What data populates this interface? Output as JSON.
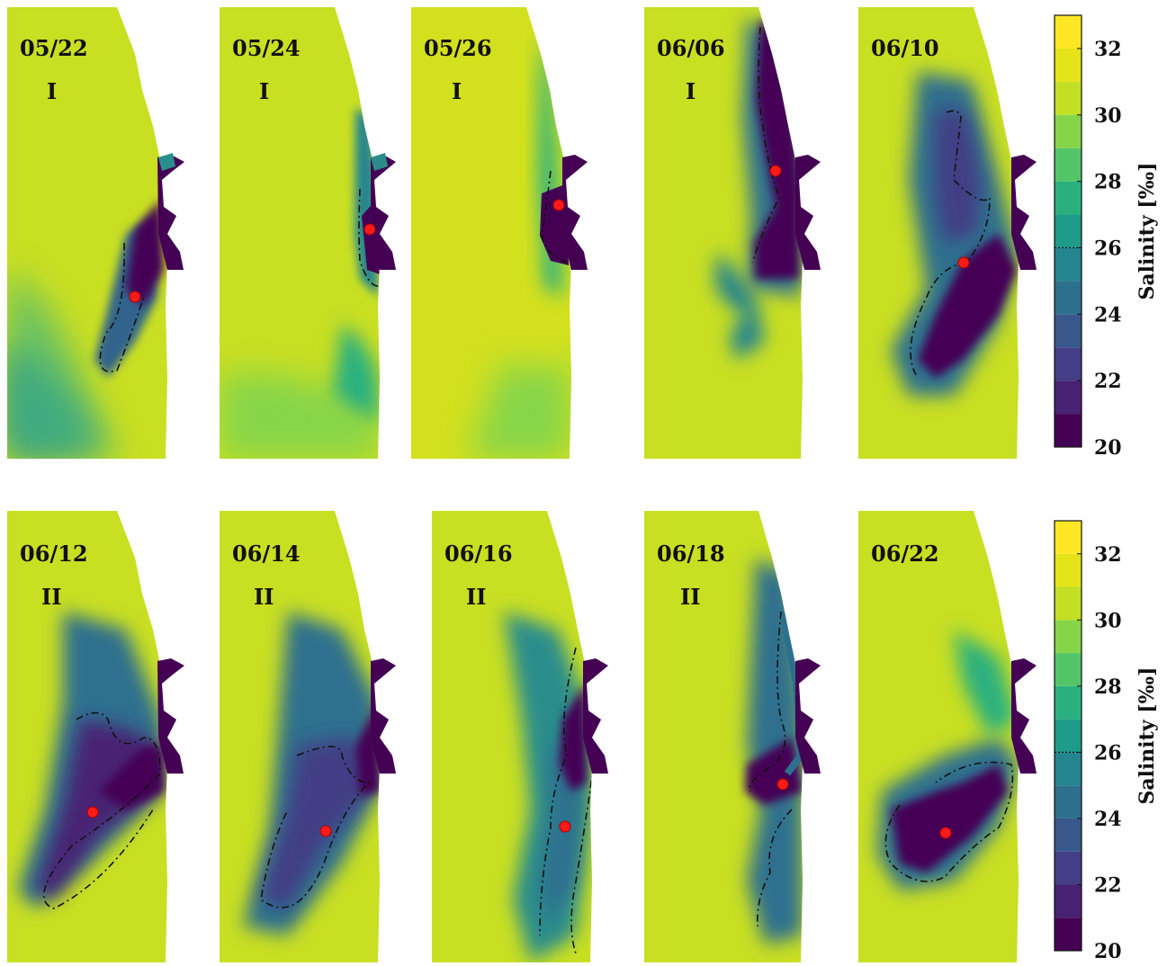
{
  "chart_data": {
    "type": "heatmap",
    "variable": "Salinity",
    "colorbar": {
      "label": "Salinity",
      "unit": "[‰]",
      "range": [
        20,
        33
      ],
      "ticks": [
        "20",
        "22",
        "24",
        "26",
        "28",
        "30",
        "32"
      ],
      "reference_contour": 26,
      "colors": [
        "#440154",
        "#482173",
        "#433e85",
        "#38588c",
        "#2d708e",
        "#25858e",
        "#1e9b8a",
        "#2ab07f",
        "#52c569",
        "#86d549",
        "#c2df23",
        "#e4e419",
        "#fde725"
      ]
    },
    "panels": [
      {
        "date": "05/22",
        "phase": "I"
      },
      {
        "date": "05/24",
        "phase": "I"
      },
      {
        "date": "05/26",
        "phase": "I"
      },
      {
        "date": "06/06",
        "phase": "I"
      },
      {
        "date": "06/10",
        "phase": ""
      },
      {
        "date": "06/12",
        "phase": "II"
      },
      {
        "date": "06/14",
        "phase": "II"
      },
      {
        "date": "06/16",
        "phase": "II"
      },
      {
        "date": "06/18",
        "phase": "II"
      },
      {
        "date": "06/22",
        "phase": ""
      }
    ]
  }
}
